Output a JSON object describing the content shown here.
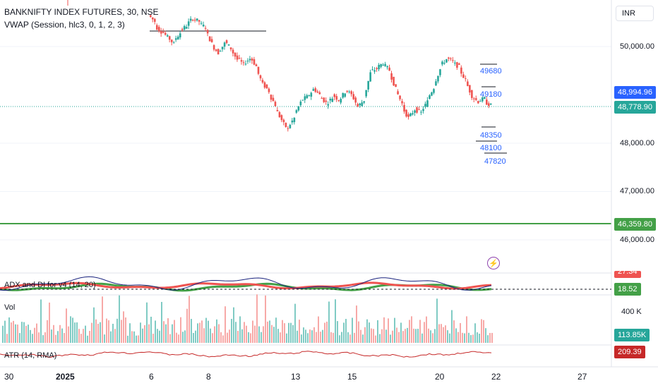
{
  "symbol": {
    "title": "BANKNIFTY INDEX FUTURES, 30, NSE",
    "vwap_label": "VWAP (Session, hlc3, 0, 1, 2, 3)"
  },
  "currency": "INR",
  "price_axis": [
    "50,000.00",
    "48,000.00",
    "47,000.00",
    "46,000.00"
  ],
  "badges": {
    "upper_blue": "48,994.96",
    "last_price": "48,778.90",
    "green_line": "46,359.80",
    "adx_top": "27.34",
    "adx": "18.52",
    "vol": "113.85K",
    "atr": "209.39"
  },
  "levels": [
    "49680",
    "49180",
    "48350",
    "48100",
    "47820"
  ],
  "indicators": {
    "adx_label": "ADX and DI for v4 (14, 20)",
    "vol_label": "Vol",
    "vol_axis": "400 K",
    "atr_label": "ATR (14, RMA)"
  },
  "time_axis": [
    "30",
    "2025",
    "6",
    "8",
    "13",
    "15",
    "20",
    "22",
    "27"
  ],
  "icons": {
    "alert": "lightning-icon"
  },
  "colors": {
    "up": "#26a69a",
    "down": "#ef5350",
    "blue": "#2962ff",
    "green": "#43a047",
    "atr": "#c62828"
  },
  "chart_data": {
    "type": "candlestick",
    "title": "BANKNIFTY INDEX FUTURES, 30, NSE",
    "y_ticks": [
      50000,
      48000,
      47000,
      46000
    ],
    "horizontal_lines": [
      46359.8
    ],
    "last_price": 48778.9,
    "x_tick_labels": [
      "30",
      "2025",
      "6",
      "8",
      "13",
      "15",
      "20",
      "22",
      "27"
    ],
    "path_points": [
      [
        50650,
        50520
      ],
      [
        50430,
        50310
      ],
      [
        50340,
        50190
      ],
      [
        50210,
        50050
      ],
      [
        50130,
        50280
      ],
      [
        50320,
        50430
      ],
      [
        50450,
        50590
      ],
      [
        50580,
        50520
      ],
      [
        50480,
        50400
      ],
      [
        50330,
        50060
      ],
      [
        50030,
        49870
      ],
      [
        49890,
        50060
      ],
      [
        50110,
        49960
      ],
      [
        49940,
        49730
      ],
      [
        49770,
        49620
      ],
      [
        49650,
        49750
      ],
      [
        49790,
        49590
      ],
      [
        49540,
        49220
      ],
      [
        49230,
        49080
      ],
      [
        49020,
        48790
      ],
      [
        48720,
        48480
      ],
      [
        48450,
        48290
      ],
      [
        48330,
        48520
      ],
      [
        48590,
        48840
      ],
      [
        48880,
        48960
      ],
      [
        48950,
        49110
      ],
      [
        49140,
        49000
      ],
      [
        48980,
        48840
      ],
      [
        48810,
        48940
      ],
      [
        49000,
        48900
      ],
      [
        48880,
        49060
      ],
      [
        49120,
        49000
      ],
      [
        49020,
        48760
      ],
      [
        48760,
        48890
      ],
      [
        48950,
        49450
      ],
      [
        49480,
        49540
      ],
      [
        49560,
        49660
      ],
      [
        49640,
        49510
      ],
      [
        49480,
        49120
      ],
      [
        49100,
        48820
      ],
      [
        48750,
        48520
      ],
      [
        48520,
        48700
      ],
      [
        48700,
        48630
      ],
      [
        48660,
        48860
      ],
      [
        48920,
        49150
      ],
      [
        49210,
        49530
      ],
      [
        49600,
        49740
      ],
      [
        49760,
        49690
      ],
      [
        49660,
        49580
      ],
      [
        49540,
        49300
      ],
      [
        49280,
        48980
      ],
      [
        48960,
        48860
      ],
      [
        48880,
        48920
      ],
      [
        48860,
        48780
      ]
    ],
    "atr_value": 209.39,
    "adx_value": 18.52,
    "volume_last": "113.85K"
  }
}
